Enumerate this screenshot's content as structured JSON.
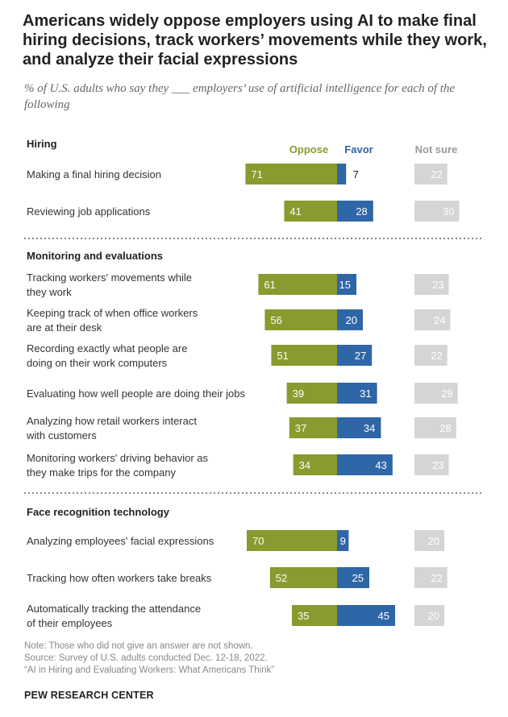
{
  "title": "Americans widely oppose employers using AI to make final hiring decisions, track workers’ movements while they work, and analyze their facial expressions",
  "subtitle": "% of U.S. adults who say they ___ employers’ use of artificial intelligence for each of the following",
  "chart_data": {
    "type": "bar",
    "orientation": "horizontal-diverging",
    "legend": [
      "Oppose",
      "Favor",
      "Not sure"
    ],
    "colors": {
      "Oppose": "#8a9a2e",
      "Favor": "#2f66a8",
      "Not sure": "#d5d5d5"
    },
    "groups": [
      {
        "name": "Hiring",
        "items": [
          {
            "label": [
              "Making a final hiring decision"
            ],
            "oppose": 71,
            "favor": 7,
            "not_sure": 22
          },
          {
            "label": [
              "Reviewing job applications"
            ],
            "oppose": 41,
            "favor": 28,
            "not_sure": 30
          }
        ]
      },
      {
        "name": "Monitoring and evaluations",
        "items": [
          {
            "label": [
              "Tracking workers' movements while",
              "they work"
            ],
            "oppose": 61,
            "favor": 15,
            "not_sure": 23
          },
          {
            "label": [
              "Keeping track of when office workers",
              "are at their desk"
            ],
            "oppose": 56,
            "favor": 20,
            "not_sure": 24
          },
          {
            "label": [
              "Recording exactly what people are",
              "doing on their work computers"
            ],
            "oppose": 51,
            "favor": 27,
            "not_sure": 22
          },
          {
            "label": [
              "Evaluating how well people are doing their jobs"
            ],
            "oppose": 39,
            "favor": 31,
            "not_sure": 29
          },
          {
            "label": [
              "Analyzing how retail workers interact",
              "with customers"
            ],
            "oppose": 37,
            "favor": 34,
            "not_sure": 28
          },
          {
            "label": [
              "Monitoring workers' driving behavior as",
              "they make trips for the company"
            ],
            "oppose": 34,
            "favor": 43,
            "not_sure": 23
          }
        ]
      },
      {
        "name": "Face recognition technology",
        "items": [
          {
            "label": [
              "Analyzing employees' facial expressions"
            ],
            "oppose": 70,
            "favor": 9,
            "not_sure": 20
          },
          {
            "label": [
              "Tracking how often workers take breaks"
            ],
            "oppose": 52,
            "favor": 25,
            "not_sure": 22
          },
          {
            "label": [
              "Automatically tracking the attendance",
              "of their employees"
            ],
            "oppose": 35,
            "favor": 45,
            "not_sure": 20
          }
        ]
      }
    ]
  },
  "footer": {
    "note": "Note: Those who did not give an answer are not shown.",
    "source": "Source: Survey of U.S. adults conducted Dec. 12-18, 2022.",
    "report": "“AI in Hiring and Evaluating Workers: What Americans Think”",
    "brand": "PEW RESEARCH CENTER"
  }
}
